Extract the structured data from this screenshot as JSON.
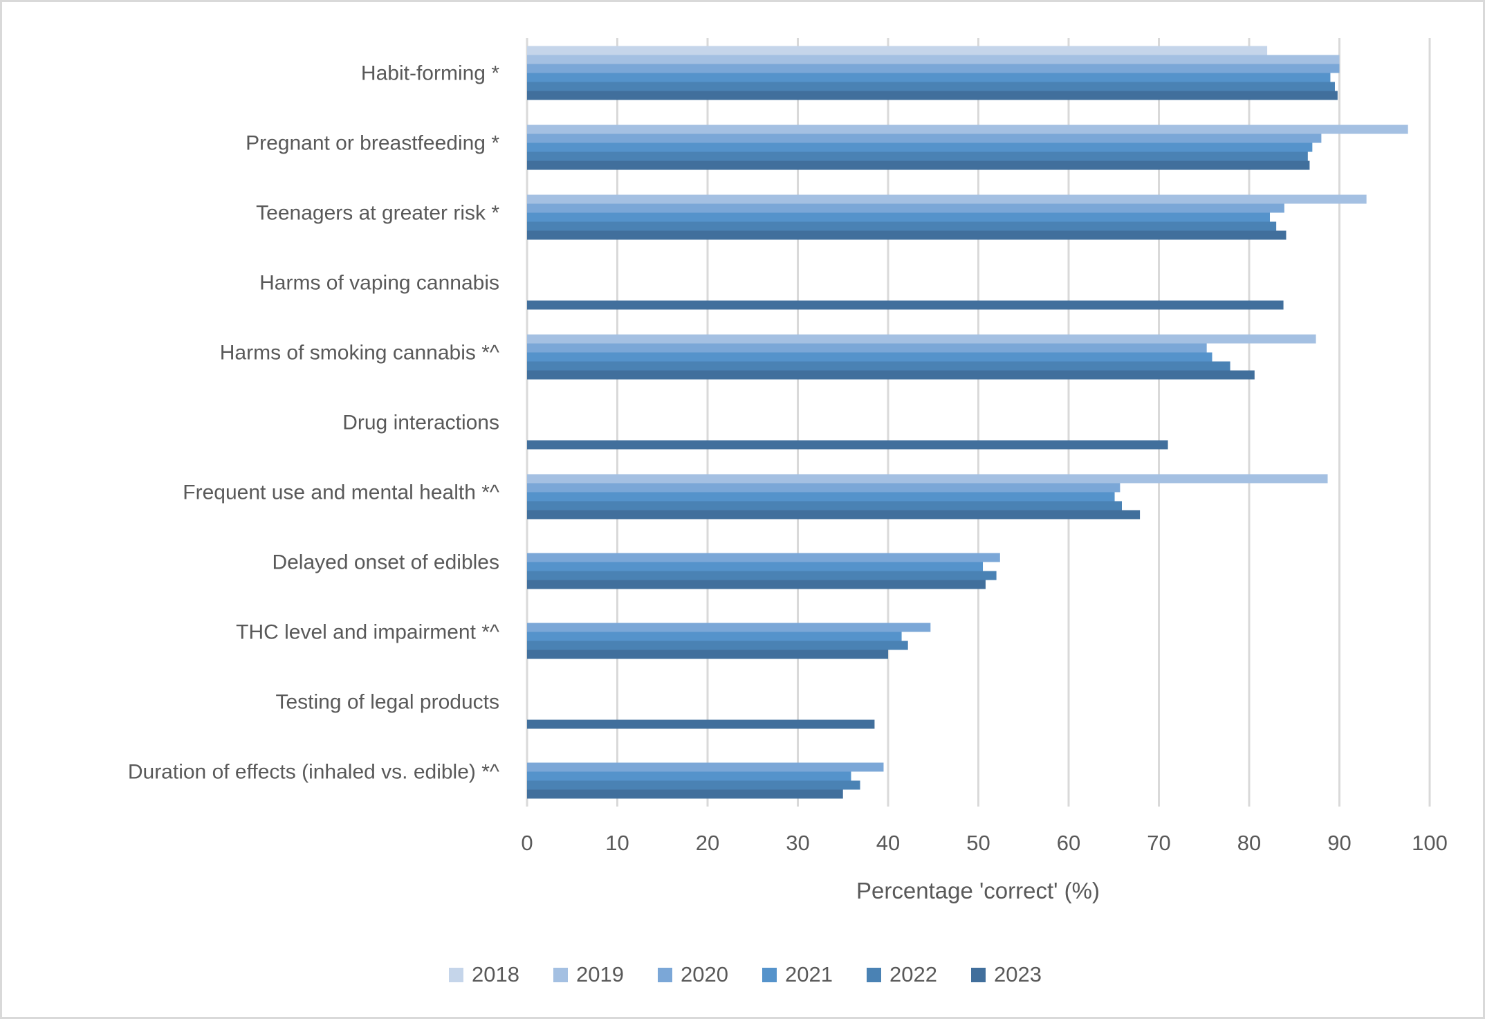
{
  "chart_data": {
    "type": "bar",
    "orientation": "horizontal",
    "title": "",
    "xlabel": "Percentage 'correct' (%)",
    "ylabel": "",
    "xlim": [
      0,
      100
    ],
    "xticks": [
      0,
      10,
      20,
      30,
      40,
      50,
      60,
      70,
      80,
      90,
      100
    ],
    "grid": true,
    "legend_position": "bottom",
    "categories": [
      "Habit-forming *",
      "Pregnant or breastfeeding *",
      "Teenagers at greater risk *",
      "Harms of vaping cannabis",
      "Harms of smoking cannabis *^",
      "Drug interactions",
      "Frequent use and mental health *^",
      "Delayed onset of edibles",
      "THC level and impairment *^",
      "Testing of legal products",
      "Duration of effects (inhaled vs. edible) *^"
    ],
    "series": [
      {
        "name": "2018",
        "color": "#C5D5EA",
        "values": [
          82.0,
          null,
          null,
          null,
          null,
          null,
          null,
          null,
          null,
          null,
          null
        ]
      },
      {
        "name": "2019",
        "color": "#A4C0E2",
        "values": [
          90.0,
          97.6,
          93.0,
          null,
          87.4,
          null,
          88.7,
          null,
          null,
          null,
          null
        ]
      },
      {
        "name": "2020",
        "color": "#7BA7D7",
        "values": [
          90.0,
          88.0,
          83.9,
          null,
          75.3,
          null,
          65.7,
          52.4,
          44.7,
          null,
          39.5
        ]
      },
      {
        "name": "2021",
        "color": "#5593CB",
        "values": [
          89.0,
          87.0,
          82.3,
          null,
          75.9,
          null,
          65.1,
          50.5,
          41.5,
          null,
          35.9
        ]
      },
      {
        "name": "2022",
        "color": "#4A82B4",
        "values": [
          89.5,
          86.5,
          83.0,
          null,
          77.9,
          null,
          65.9,
          52.0,
          42.2,
          null,
          36.9
        ]
      },
      {
        "name": "2023",
        "color": "#416F9C",
        "values": [
          89.8,
          86.7,
          84.1,
          83.8,
          80.6,
          71.0,
          67.9,
          50.8,
          40.0,
          38.5,
          35.0
        ]
      }
    ]
  }
}
